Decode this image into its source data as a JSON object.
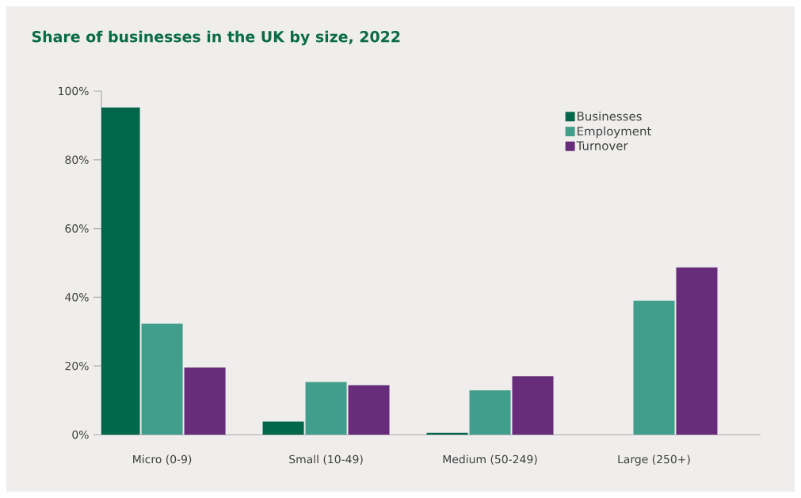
{
  "chart_data": {
    "type": "bar",
    "title": "Share of businesses in the UK by size, 2022",
    "categories": [
      "Micro (0-9)",
      "Small (10-49)",
      "Medium (50-249)",
      "Large (250+)"
    ],
    "series": [
      {
        "name": "Businesses",
        "color": "#02664a",
        "values": [
          95.2,
          3.8,
          0.5,
          null
        ]
      },
      {
        "name": "Employment",
        "color": "#419e8a",
        "values": [
          32.3,
          15.3,
          12.9,
          39.0
        ]
      },
      {
        "name": "Turnover",
        "color": "#682d7a",
        "values": [
          19.5,
          14.4,
          17.0,
          48.7
        ]
      }
    ],
    "ylim": [
      0,
      100
    ],
    "yticks": [
      {
        "value": 0,
        "label": "0%"
      },
      {
        "value": 20,
        "label": "20%"
      },
      {
        "value": 40,
        "label": "40%"
      },
      {
        "value": 60,
        "label": "60%"
      },
      {
        "value": 80,
        "label": "80%"
      },
      {
        "value": 100,
        "label": "100%"
      }
    ],
    "grid": false,
    "legend": "top right"
  }
}
